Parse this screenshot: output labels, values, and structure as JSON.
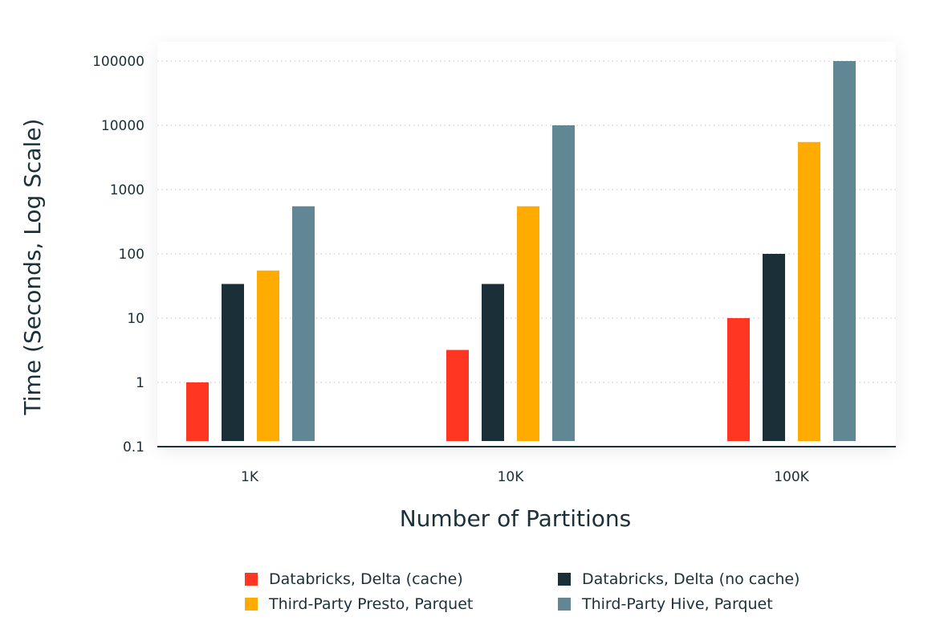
{
  "chart_data": {
    "type": "bar",
    "title": "",
    "xlabel": "Number of Partitions",
    "ylabel": "Time (Seconds, Log Scale)",
    "yscale": "log",
    "ylim": [
      0.1,
      100000
    ],
    "yticks": [
      {
        "value": 0.1,
        "label": "0.1"
      },
      {
        "value": 1,
        "label": "1"
      },
      {
        "value": 10,
        "label": "10"
      },
      {
        "value": 100,
        "label": "100"
      },
      {
        "value": 1000,
        "label": "1000"
      },
      {
        "value": 10000,
        "label": "10000"
      },
      {
        "value": 100000,
        "label": "100000"
      }
    ],
    "grid": true,
    "categories": [
      "1K",
      "10K",
      "100K"
    ],
    "series": [
      {
        "name": "Databricks, Delta (cache)",
        "color": "#ff3621",
        "values": [
          1,
          3.2,
          10
        ]
      },
      {
        "name": "Databricks, Delta (no cache)",
        "color": "#1b2f38",
        "values": [
          34,
          34,
          100
        ]
      },
      {
        "name": "Third-Party Presto, Parquet",
        "color": "#ffab00",
        "values": [
          55,
          550,
          5500
        ]
      },
      {
        "name": "Third-Party Hive, Parquet",
        "color": "#618794",
        "values": [
          550,
          10000,
          100000
        ]
      }
    ],
    "legend_position": "bottom"
  }
}
